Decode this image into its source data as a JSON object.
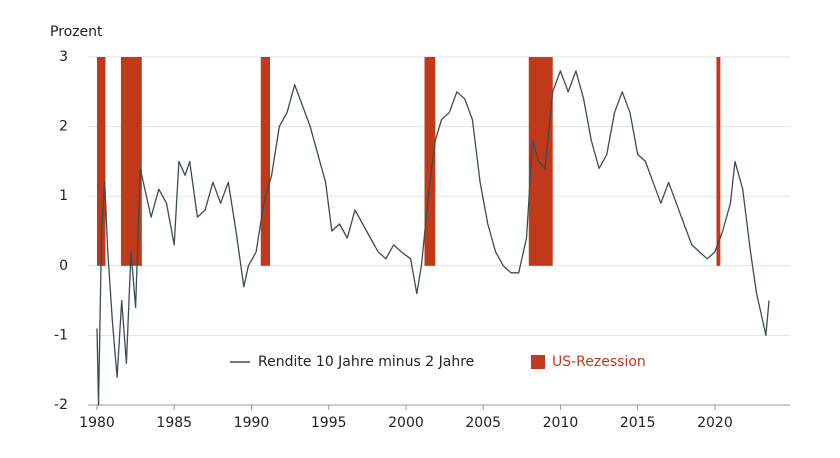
{
  "chart_data": {
    "type": "line",
    "ylabel": "Prozent",
    "xlim": [
      1980,
      2023.5
    ],
    "xticks": [
      1980,
      1985,
      1990,
      1995,
      2000,
      2005,
      2010,
      2015,
      2020
    ],
    "ylim": [
      -2,
      3
    ],
    "yticks": [
      -2,
      -1,
      0,
      1,
      2,
      3
    ],
    "grid": true,
    "series": [
      {
        "name": "Rendite 10 Jahre minus 2 Jahre",
        "color": "#3b4d4d",
        "x": [
          1980.0,
          1980.1,
          1980.3,
          1980.5,
          1980.7,
          1981.0,
          1981.3,
          1981.6,
          1981.9,
          1982.2,
          1982.5,
          1982.8,
          1983.0,
          1983.5,
          1984.0,
          1984.5,
          1985.0,
          1985.3,
          1985.7,
          1986.0,
          1986.5,
          1987.0,
          1987.5,
          1988.0,
          1988.5,
          1989.0,
          1989.5,
          1989.8,
          1990.3,
          1990.8,
          1991.3,
          1991.8,
          1992.3,
          1992.8,
          1993.3,
          1993.8,
          1994.3,
          1994.8,
          1995.2,
          1995.7,
          1996.2,
          1996.7,
          1997.2,
          1997.7,
          1998.2,
          1998.7,
          1999.2,
          1999.7,
          2000.3,
          2000.7,
          2001.0,
          2001.5,
          2001.9,
          2002.3,
          2002.8,
          2003.3,
          2003.8,
          2004.3,
          2004.8,
          2005.3,
          2005.8,
          2006.3,
          2006.8,
          2007.3,
          2007.8,
          2008.2,
          2008.6,
          2009.0,
          2009.5,
          2010.0,
          2010.5,
          2011.0,
          2011.5,
          2012.0,
          2012.5,
          2013.0,
          2013.5,
          2014.0,
          2014.5,
          2015.0,
          2015.5,
          2016.0,
          2016.5,
          2017.0,
          2017.5,
          2018.0,
          2018.5,
          2019.0,
          2019.5,
          2020.0,
          2020.5,
          2021.0,
          2021.3,
          2021.8,
          2022.3,
          2022.7,
          2023.0,
          2023.3,
          2023.5
        ],
        "values": [
          -0.9,
          -2.0,
          0.5,
          1.2,
          0.2,
          -0.8,
          -1.6,
          -0.5,
          -1.4,
          0.2,
          -0.6,
          1.4,
          1.2,
          0.7,
          1.1,
          0.9,
          0.3,
          1.5,
          1.3,
          1.5,
          0.7,
          0.8,
          1.2,
          0.9,
          1.2,
          0.5,
          -0.3,
          0.0,
          0.2,
          0.9,
          1.3,
          2.0,
          2.2,
          2.6,
          2.3,
          2.0,
          1.6,
          1.2,
          0.5,
          0.6,
          0.4,
          0.8,
          0.6,
          0.4,
          0.2,
          0.1,
          0.3,
          0.2,
          0.1,
          -0.4,
          0.0,
          1.1,
          1.8,
          2.1,
          2.2,
          2.5,
          2.4,
          2.1,
          1.2,
          0.6,
          0.2,
          0.0,
          -0.1,
          -0.1,
          0.4,
          1.8,
          1.5,
          1.4,
          2.5,
          2.8,
          2.5,
          2.8,
          2.4,
          1.8,
          1.4,
          1.6,
          2.2,
          2.5,
          2.2,
          1.6,
          1.5,
          1.2,
          0.9,
          1.2,
          0.9,
          0.6,
          0.3,
          0.2,
          0.1,
          0.2,
          0.5,
          0.9,
          1.5,
          1.1,
          0.2,
          -0.4,
          -0.7,
          -1.0,
          -0.5
        ]
      }
    ],
    "recessions": {
      "name": "US-Rezession",
      "color": "#c0391b",
      "ranges": [
        [
          1980.0,
          1980.55
        ],
        [
          1981.55,
          1982.9
        ],
        [
          1990.6,
          1991.2
        ],
        [
          2001.2,
          2001.9
        ],
        [
          2007.95,
          2009.5
        ],
        [
          2020.1,
          2020.35
        ]
      ]
    }
  }
}
